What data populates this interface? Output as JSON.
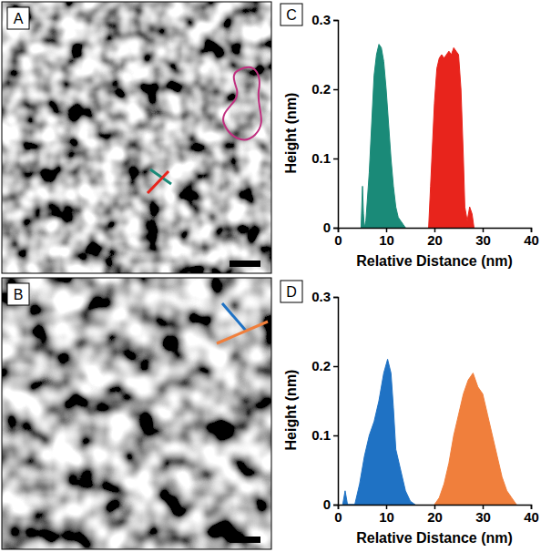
{
  "images": [
    {
      "panel": "A"
    },
    {
      "panel": "B"
    }
  ],
  "chart_data": [
    {
      "type": "area",
      "panel": "C",
      "xlabel": "Relative Distance (nm)",
      "ylabel": "Height (nm)",
      "xlim": [
        0,
        40
      ],
      "xticks": [
        0,
        10,
        20,
        30,
        40
      ],
      "ylim": [
        0,
        0.3
      ],
      "yticks": [
        0,
        0.1,
        0.2,
        0.3
      ],
      "series": [
        {
          "color": "#1a8a78",
          "x": [
            4.8,
            5.1,
            5.3,
            5.5,
            5.8,
            6.5,
            7.0,
            7.5,
            8.0,
            8.5,
            9.0,
            9.5,
            10.0,
            10.5,
            11.0,
            11.5,
            12.0,
            12.5,
            13.0,
            13.5,
            14.0
          ],
          "values": [
            0,
            0.06,
            0.02,
            0,
            0.01,
            0.08,
            0.15,
            0.22,
            0.25,
            0.265,
            0.26,
            0.24,
            0.2,
            0.15,
            0.1,
            0.06,
            0.03,
            0.015,
            0.01,
            0.005,
            0
          ]
        },
        {
          "color": "#e8241c",
          "x": [
            18.8,
            19.2,
            20,
            20.5,
            21,
            21.5,
            22,
            22.5,
            23,
            23.5,
            24,
            24.5,
            25,
            25.5,
            26,
            26.3,
            26.8,
            27.3,
            27.8,
            28.2
          ],
          "values": [
            0,
            0.06,
            0.18,
            0.23,
            0.245,
            0.25,
            0.245,
            0.25,
            0.255,
            0.25,
            0.26,
            0.255,
            0.25,
            0.2,
            0.1,
            0.03,
            0.01,
            0.03,
            0.02,
            0
          ]
        }
      ]
    },
    {
      "type": "area",
      "panel": "D",
      "xlabel": "Relative Distance (nm)",
      "ylabel": "Height (nm)",
      "xlim": [
        0,
        40
      ],
      "xticks": [
        0,
        10,
        20,
        30,
        40
      ],
      "ylim": [
        0,
        0.3
      ],
      "yticks": [
        0,
        0.1,
        0.2,
        0.3
      ],
      "series": [
        {
          "color": "#1f72c4",
          "x": [
            1,
            1.5,
            2,
            3.5,
            4.5,
            5.5,
            6.5,
            7.5,
            8.5,
            9.5,
            10.3,
            11,
            11.5,
            12,
            13,
            14,
            15,
            16
          ],
          "values": [
            0,
            0.02,
            0,
            0,
            0.03,
            0.07,
            0.1,
            0.12,
            0.15,
            0.19,
            0.21,
            0.19,
            0.14,
            0.08,
            0.05,
            0.02,
            0.005,
            0
          ]
        },
        {
          "color": "#f07f3c",
          "x": [
            20,
            21,
            22,
            23,
            24,
            25,
            26,
            27,
            28,
            29,
            30,
            31,
            32,
            33,
            34,
            35,
            36,
            37
          ],
          "values": [
            0,
            0.01,
            0.03,
            0.06,
            0.1,
            0.13,
            0.16,
            0.18,
            0.19,
            0.17,
            0.16,
            0.13,
            0.1,
            0.07,
            0.04,
            0.02,
            0.01,
            0
          ]
        }
      ]
    }
  ]
}
